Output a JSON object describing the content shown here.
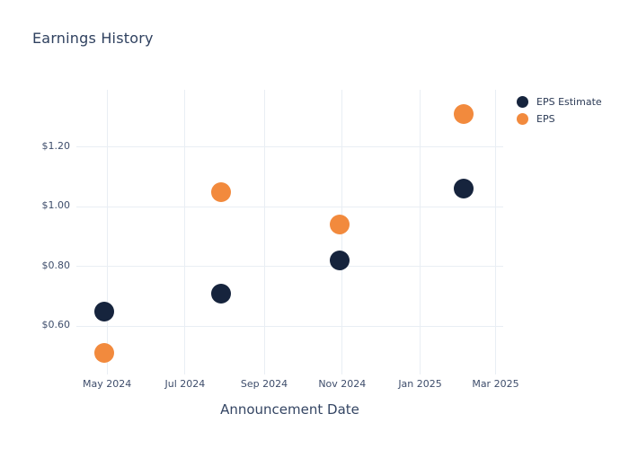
{
  "title": "Earnings History",
  "chart_data": {
    "type": "scatter",
    "title": "Earnings History",
    "xlabel": "Announcement Date",
    "ylabel": "",
    "grid": true,
    "legend_position": "top-right",
    "x_range": [
      "2024-04-07",
      "2025-03-07"
    ],
    "y_range": [
      0.447,
      1.392
    ],
    "y_ticks": [
      {
        "value": 0.6,
        "label": "$0.60"
      },
      {
        "value": 0.8,
        "label": "$0.80"
      },
      {
        "value": 1.0,
        "label": "$1.00"
      },
      {
        "value": 1.2,
        "label": "$1.20"
      }
    ],
    "x_ticks": [
      {
        "date": "2024-05-01",
        "label": "May 2024"
      },
      {
        "date": "2024-07-01",
        "label": "Jul 2024"
      },
      {
        "date": "2024-09-01",
        "label": "Sep 2024"
      },
      {
        "date": "2024-11-01",
        "label": "Nov 2024"
      },
      {
        "date": "2025-01-01",
        "label": "Jan 2025"
      },
      {
        "date": "2025-03-01",
        "label": "Mar 2025"
      }
    ],
    "series": [
      {
        "name": "EPS Estimate",
        "color": "#16243d",
        "points": [
          {
            "date": "2024-04-29",
            "value": 0.65
          },
          {
            "date": "2024-07-29",
            "value": 0.71
          },
          {
            "date": "2024-10-30",
            "value": 0.82
          },
          {
            "date": "2025-02-04",
            "value": 1.06
          }
        ]
      },
      {
        "name": "EPS",
        "color": "#f28a3d",
        "points": [
          {
            "date": "2024-04-29",
            "value": 0.51
          },
          {
            "date": "2024-07-29",
            "value": 1.05
          },
          {
            "date": "2024-10-30",
            "value": 0.94
          },
          {
            "date": "2025-02-04",
            "value": 1.31
          }
        ]
      }
    ],
    "colors": {
      "background": "#ffffff",
      "grid": "#e9eef4",
      "title_text": "#2f415f",
      "tick_text": "#3e4d6b"
    }
  }
}
